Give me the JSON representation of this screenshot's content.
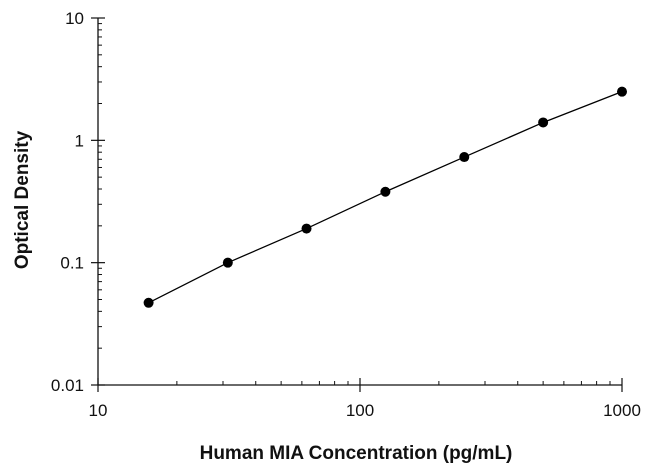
{
  "chart_data": {
    "type": "scatter",
    "title": "",
    "xlabel": "Human MIA Concentration (pg/mL)",
    "ylabel": "Optical Density",
    "x_scale": "log",
    "y_scale": "log",
    "xlim": [
      10,
      1000
    ],
    "ylim": [
      0.01,
      10
    ],
    "x_ticks": [
      10,
      100,
      1000
    ],
    "x_tick_labels": [
      "10",
      "100",
      "1000"
    ],
    "y_ticks": [
      0.01,
      0.1,
      1,
      10
    ],
    "y_tick_labels": [
      "0.01",
      "0.1",
      "1",
      "10"
    ],
    "grid": false,
    "legend": "none",
    "marker_color": "#000000",
    "line_color": "#000000",
    "fit_line": true,
    "series": [
      {
        "x": [
          15.6,
          31.3,
          62.5,
          125,
          250,
          500,
          1000
        ],
        "y": [
          0.047,
          0.1,
          0.19,
          0.38,
          0.73,
          1.4,
          2.5
        ]
      }
    ]
  }
}
